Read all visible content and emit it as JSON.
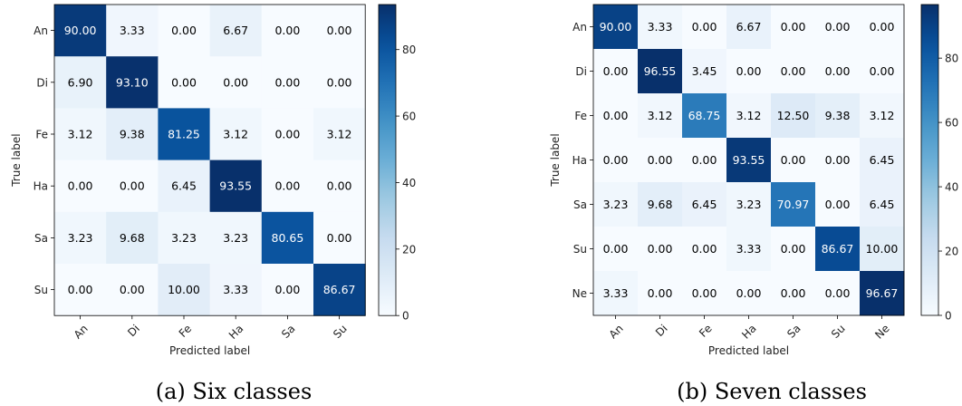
{
  "chart_data": [
    {
      "type": "heatmap",
      "caption": "(a) Six classes",
      "xlabel": "Predicted label",
      "ylabel": "True label",
      "categories": [
        "An",
        "Di",
        "Fe",
        "Ha",
        "Sa",
        "Su"
      ],
      "values": [
        [
          90.0,
          3.33,
          0.0,
          6.67,
          0.0,
          0.0
        ],
        [
          6.9,
          93.1,
          0.0,
          0.0,
          0.0,
          0.0
        ],
        [
          3.12,
          9.38,
          81.25,
          3.12,
          0.0,
          3.12
        ],
        [
          0.0,
          0.0,
          6.45,
          93.55,
          0.0,
          0.0
        ],
        [
          3.23,
          9.68,
          3.23,
          3.23,
          80.65,
          0.0
        ],
        [
          0.0,
          0.0,
          10.0,
          3.33,
          0.0,
          86.67
        ]
      ],
      "colorbar": {
        "ticks": [
          0,
          20,
          40,
          60,
          80
        ],
        "range": [
          0,
          93.55
        ],
        "colormap": "Blues"
      }
    },
    {
      "type": "heatmap",
      "caption": "(b) Seven classes",
      "xlabel": "Predicted label",
      "ylabel": "True label",
      "categories": [
        "An",
        "Di",
        "Fe",
        "Ha",
        "Sa",
        "Su",
        "Ne"
      ],
      "values": [
        [
          90.0,
          3.33,
          0.0,
          6.67,
          0.0,
          0.0,
          0.0
        ],
        [
          0.0,
          96.55,
          3.45,
          0.0,
          0.0,
          0.0,
          0.0
        ],
        [
          0.0,
          3.12,
          68.75,
          3.12,
          12.5,
          9.38,
          3.12
        ],
        [
          0.0,
          0.0,
          0.0,
          93.55,
          0.0,
          0.0,
          6.45
        ],
        [
          3.23,
          9.68,
          6.45,
          3.23,
          70.97,
          0.0,
          6.45
        ],
        [
          0.0,
          0.0,
          0.0,
          3.33,
          0.0,
          86.67,
          10.0
        ],
        [
          3.33,
          0.0,
          0.0,
          0.0,
          0.0,
          0.0,
          96.67
        ]
      ],
      "colorbar": {
        "ticks": [
          0,
          20,
          40,
          60,
          80
        ],
        "range": [
          0,
          96.67
        ],
        "colormap": "Blues"
      }
    }
  ]
}
